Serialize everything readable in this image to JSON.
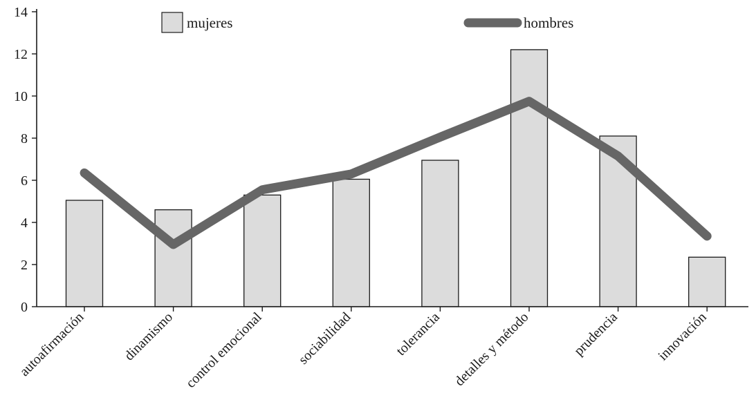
{
  "chart_data": {
    "type": "bar",
    "categories": [
      "autoafirmación",
      "dinamismo",
      "control emocional",
      "sociabilidad",
      "tolerancia",
      "detalles y método",
      "prudencia",
      "innovación"
    ],
    "series": [
      {
        "name": "mujeres",
        "type": "bar",
        "values": [
          5.05,
          4.6,
          5.3,
          6.05,
          6.95,
          12.2,
          8.1,
          2.35
        ],
        "color": "#dcdcdc"
      },
      {
        "name": "hombres",
        "type": "line",
        "values": [
          6.35,
          2.95,
          5.55,
          6.3,
          8.05,
          9.75,
          7.15,
          3.35
        ],
        "color": "#666666"
      }
    ],
    "ylim": [
      0,
      14
    ],
    "yticks": [
      0,
      2,
      4,
      6,
      8,
      10,
      12,
      14
    ],
    "legend": "top",
    "grid": false,
    "title": "",
    "xlabel": "",
    "ylabel": ""
  }
}
